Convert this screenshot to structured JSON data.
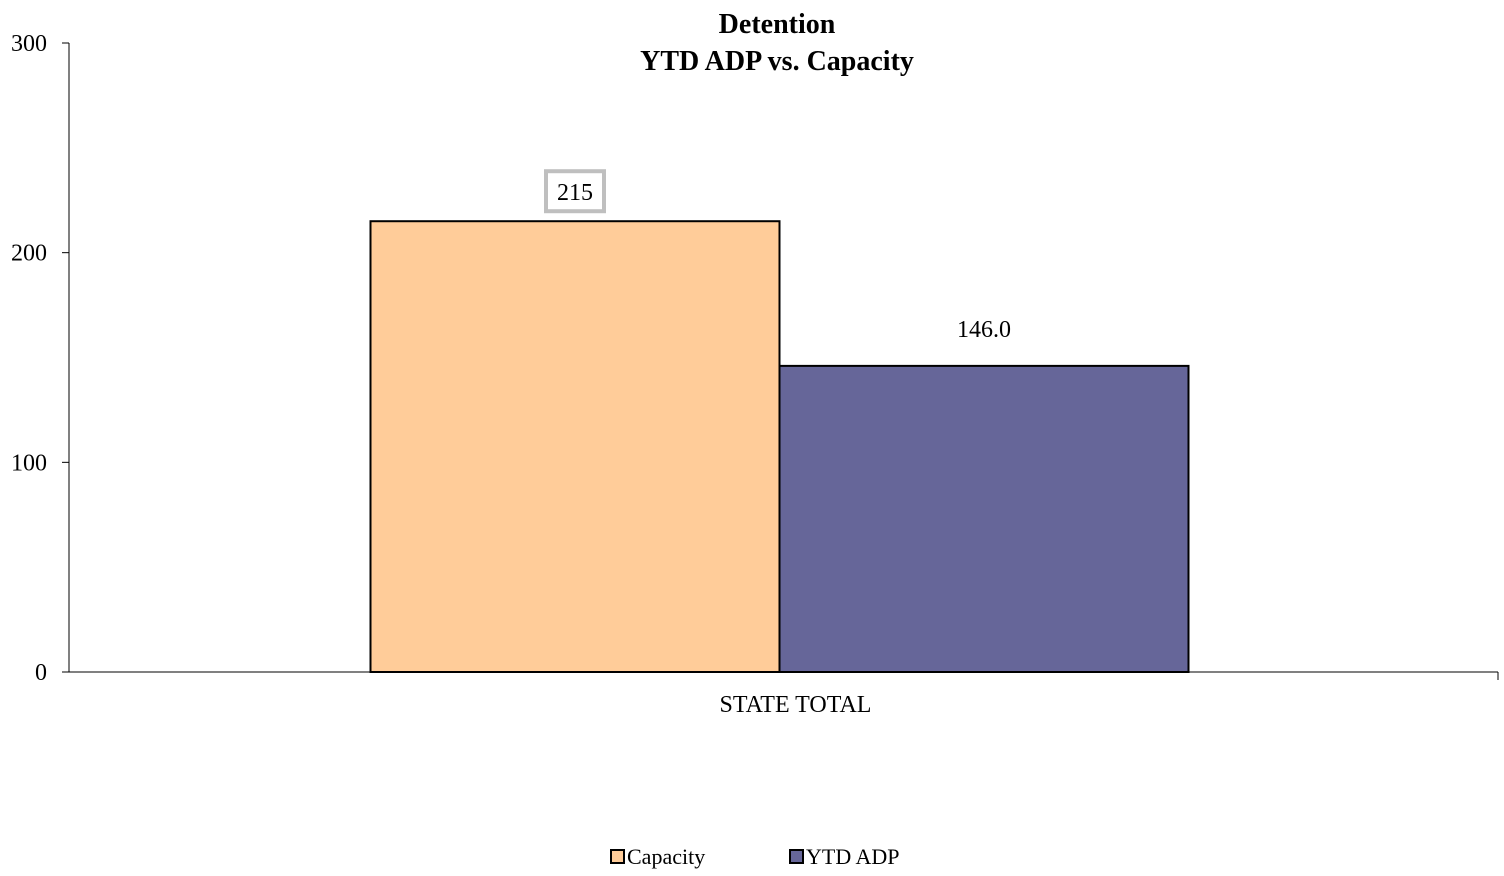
{
  "chart_data": {
    "type": "bar",
    "title_lines": [
      "Detention",
      "YTD ADP vs. Capacity"
    ],
    "xlabel": "",
    "ylabel": "",
    "categories": [
      "STATE TOTAL"
    ],
    "series": [
      {
        "name": "Capacity",
        "values": [
          215
        ],
        "label": "215",
        "color": "#FFCC99"
      },
      {
        "name": "YTD ADP",
        "values": [
          146.0
        ],
        "label": "146.0",
        "color": "#666699"
      }
    ],
    "ylim": [
      0,
      300
    ],
    "yticks": [
      0,
      100,
      200,
      300
    ],
    "grid": false,
    "legend_position": "bottom"
  }
}
